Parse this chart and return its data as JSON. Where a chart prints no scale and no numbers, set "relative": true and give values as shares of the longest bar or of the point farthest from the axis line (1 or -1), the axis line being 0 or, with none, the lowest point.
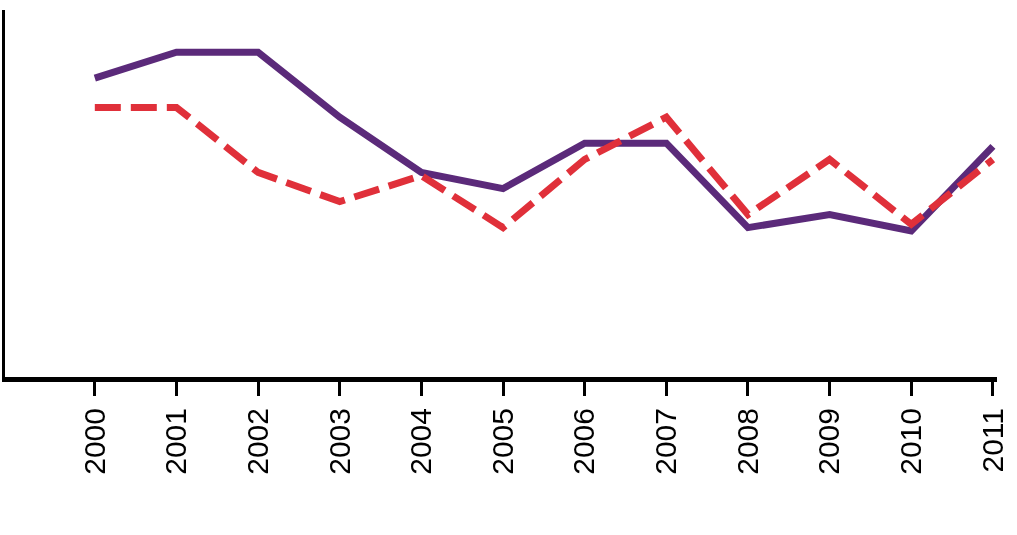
{
  "chart_data": {
    "type": "line",
    "relative": true,
    "categories": [
      "2000",
      "2001",
      "2002",
      "2003",
      "2004",
      "2005",
      "2006",
      "2007",
      "2008",
      "2009",
      "2010",
      "2011"
    ],
    "series": [
      {
        "color": "#5b2a7a",
        "line_style": "solid",
        "values": [
          0.92,
          1,
          1,
          0.8,
          0.63,
          0.58,
          0.72,
          0.72,
          0.46,
          0.5,
          0.45,
          0.71
        ]
      },
      {
        "color": "#e0303a",
        "line_style": "dashed",
        "values": [
          0.83,
          0.83,
          0.63,
          0.54,
          0.62,
          0.46,
          0.67,
          0.8,
          0.5,
          0.67,
          0.47,
          0.67
        ]
      }
    ],
    "grid": false,
    "marker": "none"
  }
}
